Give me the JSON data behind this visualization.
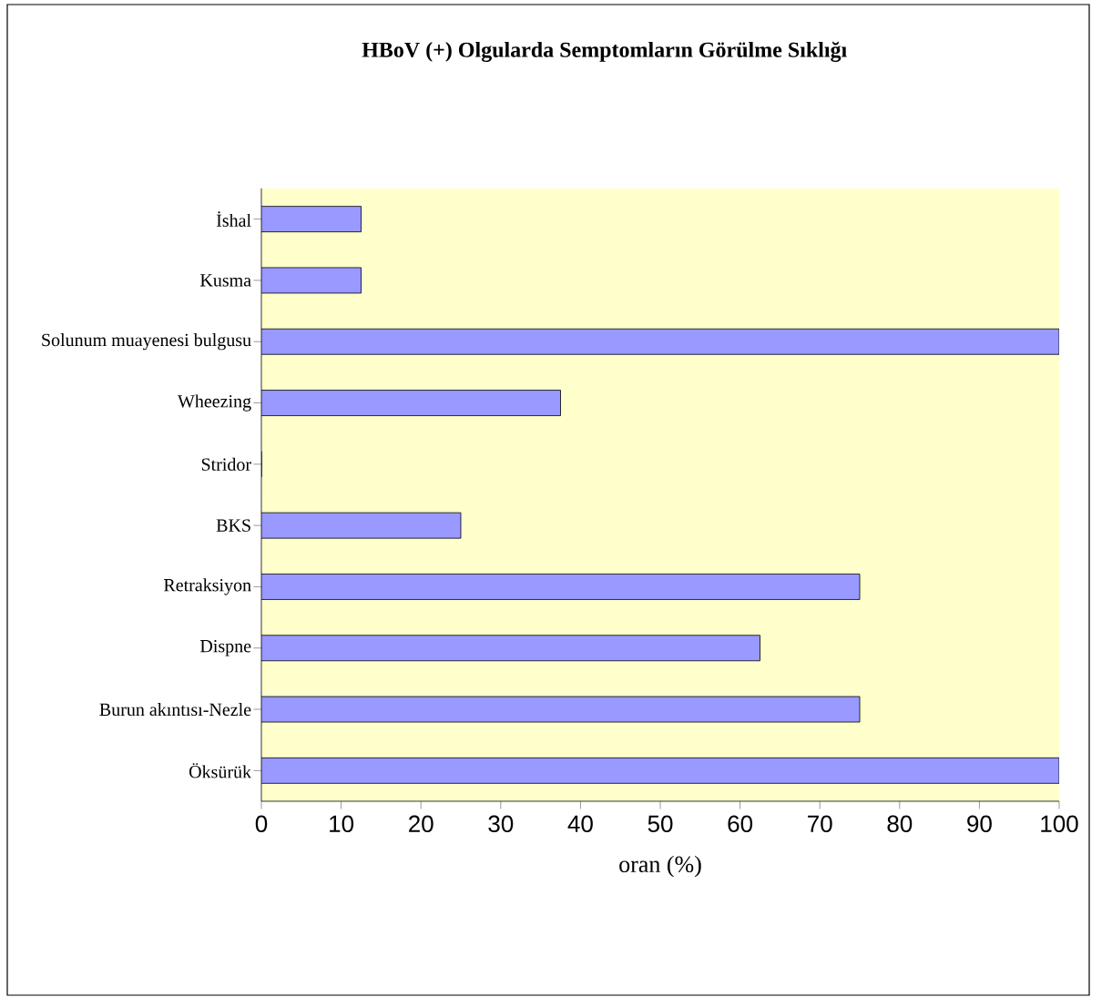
{
  "chart_data": {
    "type": "bar",
    "orientation": "horizontal",
    "title": "HBoV (+) Olgularda Semptomların Görülme Sıklığı",
    "xlabel": "oran (%)",
    "categories": [
      "İshal",
      "Kusma",
      "Solunum muayenesi bulgusu",
      "Wheezing",
      "Stridor",
      "BKS",
      "Retraksiyon",
      "Dispne",
      "Burun akıntısı-Nezle",
      "Öksürük"
    ],
    "values": [
      12.5,
      12.5,
      100,
      37.5,
      0,
      25,
      75,
      62.5,
      75,
      100
    ],
    "color": "#9999ff",
    "xlim": [
      0,
      100
    ],
    "xticks": [
      0,
      10,
      20,
      30,
      40,
      50,
      60,
      70,
      80,
      90,
      100
    ]
  }
}
